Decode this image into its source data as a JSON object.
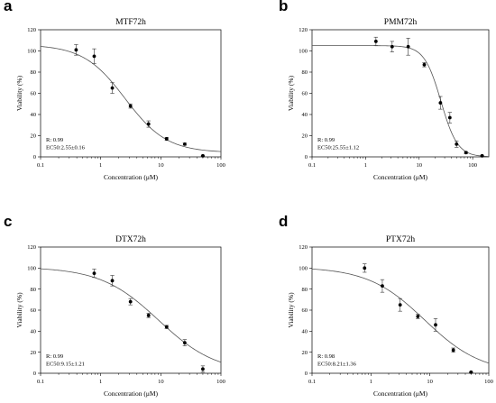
{
  "chart_data": [
    {
      "panel": "a",
      "type": "scatter",
      "title": "MTF72h",
      "xlabel": "Concentration (μM)",
      "ylabel": "Viability (%)",
      "xscale": "log",
      "xlim": [
        0.1,
        100
      ],
      "ylim": [
        0,
        120
      ],
      "x_ticks": [
        "0.1",
        "1",
        "10",
        "100"
      ],
      "y_ticks": [
        "0",
        "20",
        "40",
        "60",
        "80",
        "100",
        "120"
      ],
      "annotations": [
        "R: 0.99",
        "EC50:2.55±0.16"
      ],
      "points": [
        {
          "x": 0.39,
          "y": 101,
          "err": 5
        },
        {
          "x": 0.78,
          "y": 95,
          "err": 7
        },
        {
          "x": 1.56,
          "y": 65,
          "err": 5
        },
        {
          "x": 3.13,
          "y": 48,
          "err": 2
        },
        {
          "x": 6.25,
          "y": 31,
          "err": 3
        },
        {
          "x": 12.5,
          "y": 17,
          "err": 1.5
        },
        {
          "x": 25,
          "y": 12,
          "err": 1
        },
        {
          "x": 50,
          "y": 1,
          "err": 0.5
        }
      ],
      "fit": {
        "top": 106,
        "bottom": 4,
        "ec50": 2.55,
        "hill": 1.25
      }
    },
    {
      "panel": "b",
      "type": "scatter",
      "title": "PMM72h",
      "xlabel": "Concentration (μM)",
      "ylabel": "Viability (%)",
      "xscale": "log",
      "xlim": [
        0.1,
        200
      ],
      "ylim": [
        0,
        120
      ],
      "x_ticks": [
        "0.1",
        "1",
        "10",
        "100"
      ],
      "y_ticks": [
        "0",
        "20",
        "40",
        "60",
        "80",
        "100",
        "120"
      ],
      "annotations": [
        "R: 0.99",
        "EC50:25.55±1.12"
      ],
      "points": [
        {
          "x": 1.56,
          "y": 109,
          "err": 4
        },
        {
          "x": 3.13,
          "y": 104,
          "err": 5
        },
        {
          "x": 6.25,
          "y": 104,
          "err": 8
        },
        {
          "x": 12.5,
          "y": 87,
          "err": 2
        },
        {
          "x": 25,
          "y": 51,
          "err": 6
        },
        {
          "x": 37.5,
          "y": 37,
          "err": 5
        },
        {
          "x": 50,
          "y": 12,
          "err": 3
        },
        {
          "x": 75,
          "y": 4,
          "err": 1
        },
        {
          "x": 150,
          "y": 1,
          "err": 0.5
        }
      ],
      "fit": {
        "top": 105,
        "bottom": 0,
        "ec50": 25.55,
        "hill": 2.8
      }
    },
    {
      "panel": "c",
      "type": "scatter",
      "title": "DTX72h",
      "xlabel": "Concentration (μM)",
      "ylabel": "Viability (%)",
      "xscale": "log",
      "xlim": [
        0.1,
        100
      ],
      "ylim": [
        0,
        120
      ],
      "x_ticks": [
        "0.1",
        "1",
        "10",
        "100"
      ],
      "y_ticks": [
        "0",
        "20",
        "40",
        "60",
        "80",
        "100",
        "120"
      ],
      "annotations": [
        "R: 0.99",
        "EC50:9.15±1.21"
      ],
      "points": [
        {
          "x": 0.78,
          "y": 95,
          "err": 4
        },
        {
          "x": 1.56,
          "y": 88,
          "err": 5
        },
        {
          "x": 3.13,
          "y": 68,
          "err": 3
        },
        {
          "x": 6.25,
          "y": 55,
          "err": 2
        },
        {
          "x": 12.5,
          "y": 44,
          "err": 1.5
        },
        {
          "x": 25,
          "y": 29,
          "err": 3
        },
        {
          "x": 50,
          "y": 4,
          "err": 3
        }
      ],
      "fit": {
        "top": 101,
        "bottom": 0,
        "ec50": 9.15,
        "hill": 0.9
      }
    },
    {
      "panel": "d",
      "type": "scatter",
      "title": "PTX72h",
      "xlabel": "Concentration (μM)",
      "ylabel": "Viability (%)",
      "xscale": "log",
      "xlim": [
        0.1,
        100
      ],
      "ylim": [
        0,
        120
      ],
      "x_ticks": [
        "0.1",
        "1",
        "10",
        "100"
      ],
      "y_ticks": [
        "0",
        "20",
        "40",
        "60",
        "80",
        "100",
        "120"
      ],
      "annotations": [
        "R: 0.98",
        "EC50:8.21±1.36"
      ],
      "points": [
        {
          "x": 0.78,
          "y": 100,
          "err": 4
        },
        {
          "x": 1.56,
          "y": 83,
          "err": 6
        },
        {
          "x": 3.13,
          "y": 65,
          "err": 6
        },
        {
          "x": 6.25,
          "y": 54,
          "err": 2
        },
        {
          "x": 12.5,
          "y": 46,
          "err": 6
        },
        {
          "x": 25,
          "y": 22,
          "err": 2
        },
        {
          "x": 50,
          "y": 1,
          "err": 0.5
        }
      ],
      "fit": {
        "top": 101,
        "bottom": 0,
        "ec50": 8.21,
        "hill": 0.9
      }
    }
  ]
}
